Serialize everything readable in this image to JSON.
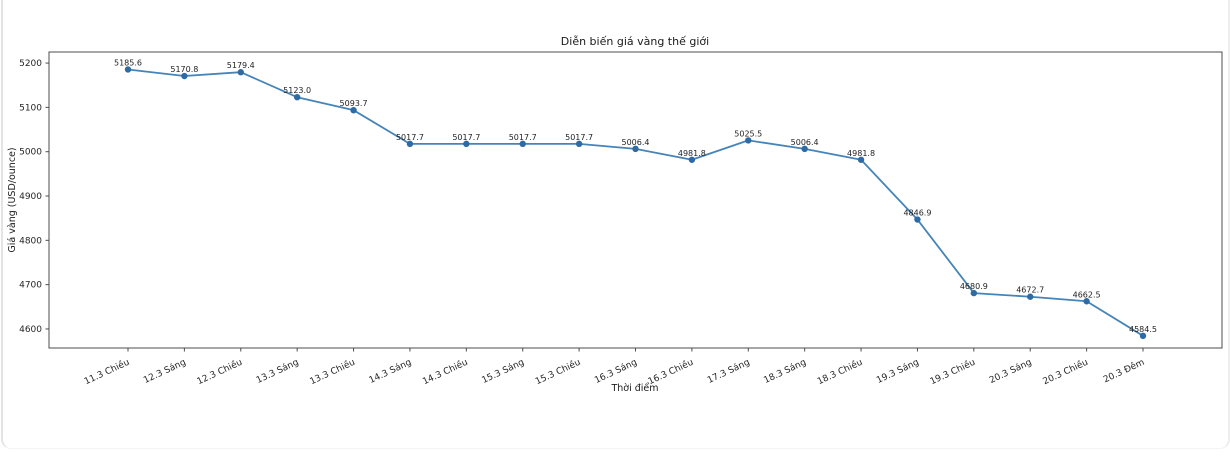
{
  "chart_data": {
    "type": "line",
    "title": "Diễn biến giá vàng thế giới",
    "xlabel": "Thời điểm",
    "ylabel": "Giá vàng (USD/ounce)",
    "categories": [
      "11.3 Chiều",
      "12.3 Sáng",
      "12.3 Chiều",
      "13.3 Sáng",
      "13.3 Chiều",
      "14.3 Sáng",
      "14.3 Chiều",
      "15.3 Sáng",
      "15.3 Chiều",
      "16.3 Sáng",
      "16.3 Chiều",
      "17.3 Sáng",
      "18.3 Sáng",
      "18.3 Chiều",
      "19.3 Sáng",
      "19.3 Chiều",
      "20.3 Sáng",
      "20.3 Chiều",
      "20.3 Đêm"
    ],
    "values": [
      5185.6,
      5170.8,
      5179.4,
      5123.0,
      5093.7,
      5017.7,
      5017.7,
      5017.7,
      5017.7,
      5006.4,
      4981.8,
      5025.5,
      5006.4,
      4981.8,
      4846.9,
      4680.9,
      4672.7,
      4662.5,
      4584.5
    ],
    "point_labels_visible": true,
    "y_ticks": [
      4600,
      4700,
      4800,
      4900,
      5000,
      5100,
      5200
    ],
    "ylim": [
      4557,
      5225
    ],
    "x_tick_rotation_deg": 25,
    "grid": false,
    "legend": null,
    "line_color": "#4684b8",
    "marker_color": "#2e6ba4"
  }
}
